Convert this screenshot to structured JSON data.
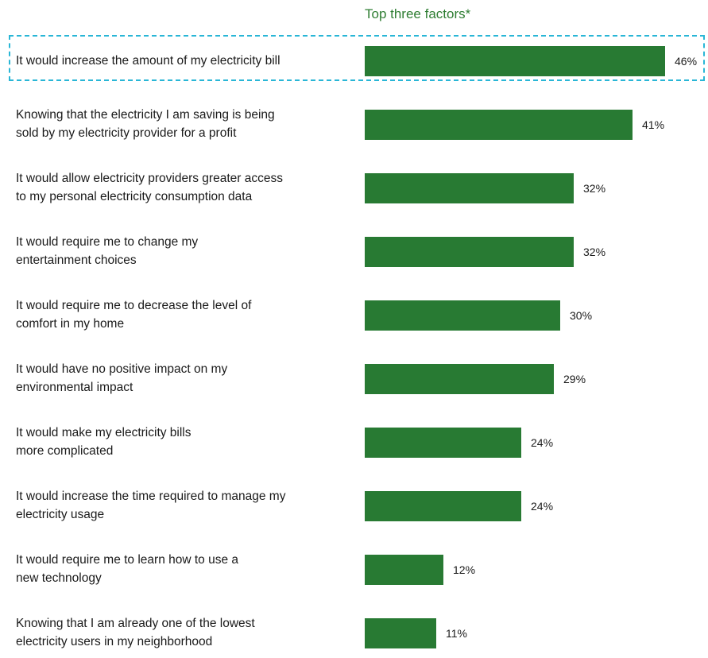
{
  "chart_data": {
    "type": "bar",
    "orientation": "horizontal",
    "title": "Top three factors*",
    "categories": [
      "It would increase the amount of my electricity bill",
      "Knowing that the electricity I am saving is being\nsold by my electricity provider for a profit",
      "It would allow electricity providers greater access\nto my personal electricity consumption data",
      "It would require me to change my\nentertainment choices",
      "It would require me to decrease the level of\ncomfort in my home",
      "It would have no positive impact on my\nenvironmental impact",
      "It would make my electricity bills\nmore complicated",
      "It would increase the time required to manage my\nelectricity usage",
      "It would require me to learn how to use a\nnew technology",
      "Knowing that I am already one of the lowest\nelectricity users in my neighborhood"
    ],
    "values": [
      46,
      41,
      32,
      32,
      30,
      29,
      24,
      24,
      12,
      11
    ],
    "value_labels": [
      "46%",
      "41%",
      "32%",
      "32%",
      "30%",
      "29%",
      "24%",
      "24%",
      "12%",
      "11%"
    ],
    "unit": "%",
    "highlighted_category_index": 0,
    "xlim": [
      0,
      47
    ],
    "grid": false,
    "legend": "none",
    "colors": {
      "bar": "#287a33",
      "title": "#2e7d32",
      "highlight_border": "#29b6d6",
      "text": "#1a1a1a"
    }
  }
}
